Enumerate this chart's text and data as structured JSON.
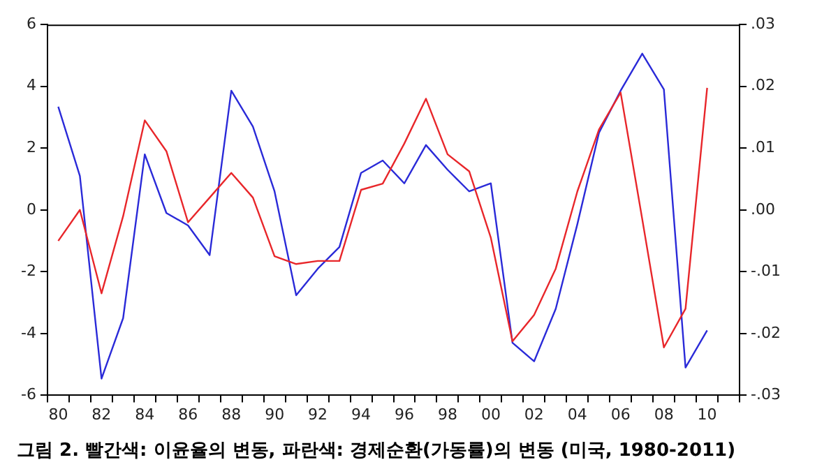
{
  "chart_data": {
    "type": "line",
    "title": "그림 2. 빨간색: 이윤율의 변동, 파란색: 경제순환(가동률)의 변동 (미국, 1980-2011)",
    "categories": [
      "80",
      null,
      "82",
      null,
      "84",
      null,
      "86",
      null,
      "88",
      null,
      "90",
      null,
      "92",
      null,
      "94",
      null,
      "96",
      null,
      "98",
      null,
      "00",
      null,
      "02",
      null,
      "04",
      null,
      "06",
      null,
      "08",
      null,
      "10",
      null
    ],
    "series": [
      {
        "color": "#e8262a",
        "values": [
          -1.0,
          0.0,
          -2.7,
          -0.2,
          2.9,
          1.9,
          -0.4,
          0.4,
          1.2,
          0.4,
          -1.5,
          -1.75,
          -1.65,
          -1.65,
          0.65,
          0.85,
          2.15,
          3.6,
          1.8,
          1.25,
          -0.9,
          -4.25,
          -3.4,
          -1.9,
          0.6,
          2.6,
          3.8,
          -0.3,
          -4.45,
          -3.2,
          3.95,
          null
        ]
      },
      {
        "color": "#2a2ad8",
        "axis": "y2",
        "values": [
          0.0167,
          0.0055,
          -0.0273,
          -0.0175,
          0.009,
          -0.0005,
          -0.0025,
          -0.0073,
          0.0193,
          0.0135,
          0.003,
          -0.0138,
          -0.0095,
          -0.006,
          0.006,
          0.008,
          0.0043,
          0.0105,
          0.0065,
          0.003,
          0.0043,
          -0.0215,
          -0.0245,
          -0.016,
          -0.0023,
          0.0125,
          0.0193,
          0.0253,
          0.0195,
          -0.0255,
          -0.0195,
          null
        ]
      }
    ],
    "ylim": [
      -6,
      6
    ],
    "yticks": [
      -6,
      -4,
      -2,
      0,
      2,
      4,
      6
    ],
    "y2lim": [
      -0.03,
      0.03
    ],
    "y2ticks": [
      {
        "value": -0.03,
        "label": "-.03"
      },
      {
        "value": -0.02,
        "label": "-.02"
      },
      {
        "value": -0.01,
        "label": "-.01"
      },
      {
        "value": 0,
        "label": ".00"
      },
      {
        "value": 0.01,
        "label": ".01"
      },
      {
        "value": 0.02,
        "label": ".02"
      },
      {
        "value": 0.03,
        "label": ".03"
      }
    ],
    "grid": false,
    "legend": false,
    "marker": "none",
    "line_style": "solid"
  }
}
